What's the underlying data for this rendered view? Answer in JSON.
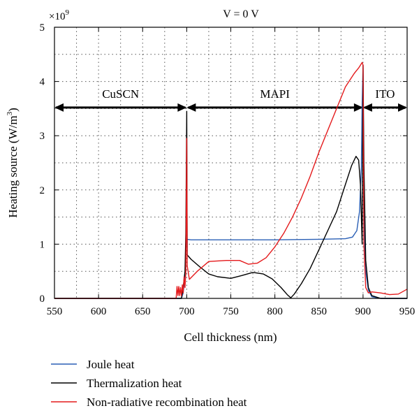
{
  "chart_data": {
    "type": "line",
    "title": "V = 0 V",
    "xlabel": "Cell thickness (nm)",
    "ylabel": "Heating source (W/m",
    "ylabel_sup": "3",
    "ylabel_close": ")",
    "y_multiplier_base": "×10",
    "y_multiplier_exp": "9",
    "xlim": [
      550,
      950
    ],
    "ylim": [
      0,
      5
    ],
    "x_ticks": [
      550,
      600,
      650,
      700,
      750,
      800,
      850,
      900,
      950
    ],
    "x_tick_labels": [
      "550",
      "600",
      "650",
      "700",
      "750",
      "800",
      "850",
      "900",
      "950"
    ],
    "y_ticks": [
      0,
      1,
      2,
      3,
      4,
      5
    ],
    "y_tick_labels": [
      "0",
      "1",
      "2",
      "3",
      "4",
      "5"
    ],
    "grid": true,
    "legend_position": "bottom-left, below plot",
    "regions": [
      {
        "label": "CuSCN",
        "x_start": 550,
        "x_end": 700
      },
      {
        "label": "MAPI",
        "x_start": 700,
        "x_end": 900
      },
      {
        "label": "ITO",
        "x_start": 900,
        "x_end": 950
      }
    ],
    "region_arrow_y": 3.52,
    "series": [
      {
        "name": "Joule heat",
        "color": "#2a5fb5",
        "points": [
          [
            550,
            0
          ],
          [
            694,
            0
          ],
          [
            696,
            0.1
          ],
          [
            698,
            0.4
          ],
          [
            699,
            0.9
          ],
          [
            700,
            1.09
          ],
          [
            705,
            1.08
          ],
          [
            750,
            1.08
          ],
          [
            800,
            1.08
          ],
          [
            850,
            1.09
          ],
          [
            880,
            1.1
          ],
          [
            888,
            1.13
          ],
          [
            893,
            1.25
          ],
          [
            896,
            1.6
          ],
          [
            898,
            2.4
          ],
          [
            899,
            3.6
          ],
          [
            900,
            4.3
          ],
          [
            901,
            1.6
          ],
          [
            903,
            0.5
          ],
          [
            906,
            0.15
          ],
          [
            910,
            0.03
          ],
          [
            920,
            0
          ],
          [
            950,
            0
          ]
        ]
      },
      {
        "name": "Thermalization heat",
        "color": "#000000",
        "points": [
          [
            550,
            0
          ],
          [
            694,
            0
          ],
          [
            696,
            0.2
          ],
          [
            698,
            0.5
          ],
          [
            699,
            1.2
          ],
          [
            700,
            3.45
          ],
          [
            700.6,
            0.8
          ],
          [
            705,
            0.72
          ],
          [
            715,
            0.58
          ],
          [
            725,
            0.45
          ],
          [
            735,
            0.4
          ],
          [
            750,
            0.37
          ],
          [
            762,
            0.42
          ],
          [
            775,
            0.48
          ],
          [
            787,
            0.45
          ],
          [
            797,
            0.36
          ],
          [
            807,
            0.2
          ],
          [
            814,
            0.07
          ],
          [
            818,
            0.01
          ],
          [
            822,
            0.08
          ],
          [
            830,
            0.27
          ],
          [
            840,
            0.55
          ],
          [
            850,
            0.9
          ],
          [
            860,
            1.25
          ],
          [
            870,
            1.6
          ],
          [
            880,
            2.1
          ],
          [
            887,
            2.45
          ],
          [
            892,
            2.62
          ],
          [
            895,
            2.55
          ],
          [
            897,
            2.1
          ],
          [
            899,
            1.0
          ],
          [
            900,
            4.3
          ],
          [
            901,
            2.5
          ],
          [
            903,
            0.7
          ],
          [
            906,
            0.2
          ],
          [
            910,
            0.05
          ],
          [
            920,
            0
          ],
          [
            950,
            0
          ]
        ]
      },
      {
        "name": "Non-radiative recombination heat",
        "color": "#e41a1c",
        "points": [
          [
            550,
            0
          ],
          [
            688,
            0
          ],
          [
            689,
            0.22
          ],
          [
            690,
            0.05
          ],
          [
            691,
            0.22
          ],
          [
            692,
            0.05
          ],
          [
            693,
            0.2
          ],
          [
            694,
            0.05
          ],
          [
            695,
            0.25
          ],
          [
            696,
            0.1
          ],
          [
            697,
            0.4
          ],
          [
            698,
            0.2
          ],
          [
            699,
            0.5
          ],
          [
            700,
            2.95
          ],
          [
            700.6,
            0.6
          ],
          [
            703,
            0.35
          ],
          [
            712,
            0.5
          ],
          [
            725,
            0.68
          ],
          [
            745,
            0.7
          ],
          [
            760,
            0.7
          ],
          [
            770,
            0.63
          ],
          [
            780,
            0.65
          ],
          [
            790,
            0.75
          ],
          [
            800,
            0.95
          ],
          [
            810,
            1.2
          ],
          [
            820,
            1.5
          ],
          [
            830,
            1.85
          ],
          [
            840,
            2.25
          ],
          [
            850,
            2.7
          ],
          [
            860,
            3.1
          ],
          [
            870,
            3.5
          ],
          [
            880,
            3.9
          ],
          [
            890,
            4.15
          ],
          [
            895,
            4.25
          ],
          [
            899,
            4.35
          ],
          [
            900,
            4.3
          ],
          [
            901,
            1.0
          ],
          [
            903,
            0.2
          ],
          [
            906,
            0.1
          ],
          [
            910,
            0.12
          ],
          [
            920,
            0.1
          ],
          [
            930,
            0.07
          ],
          [
            940,
            0.08
          ],
          [
            950,
            0.17
          ]
        ]
      }
    ]
  }
}
